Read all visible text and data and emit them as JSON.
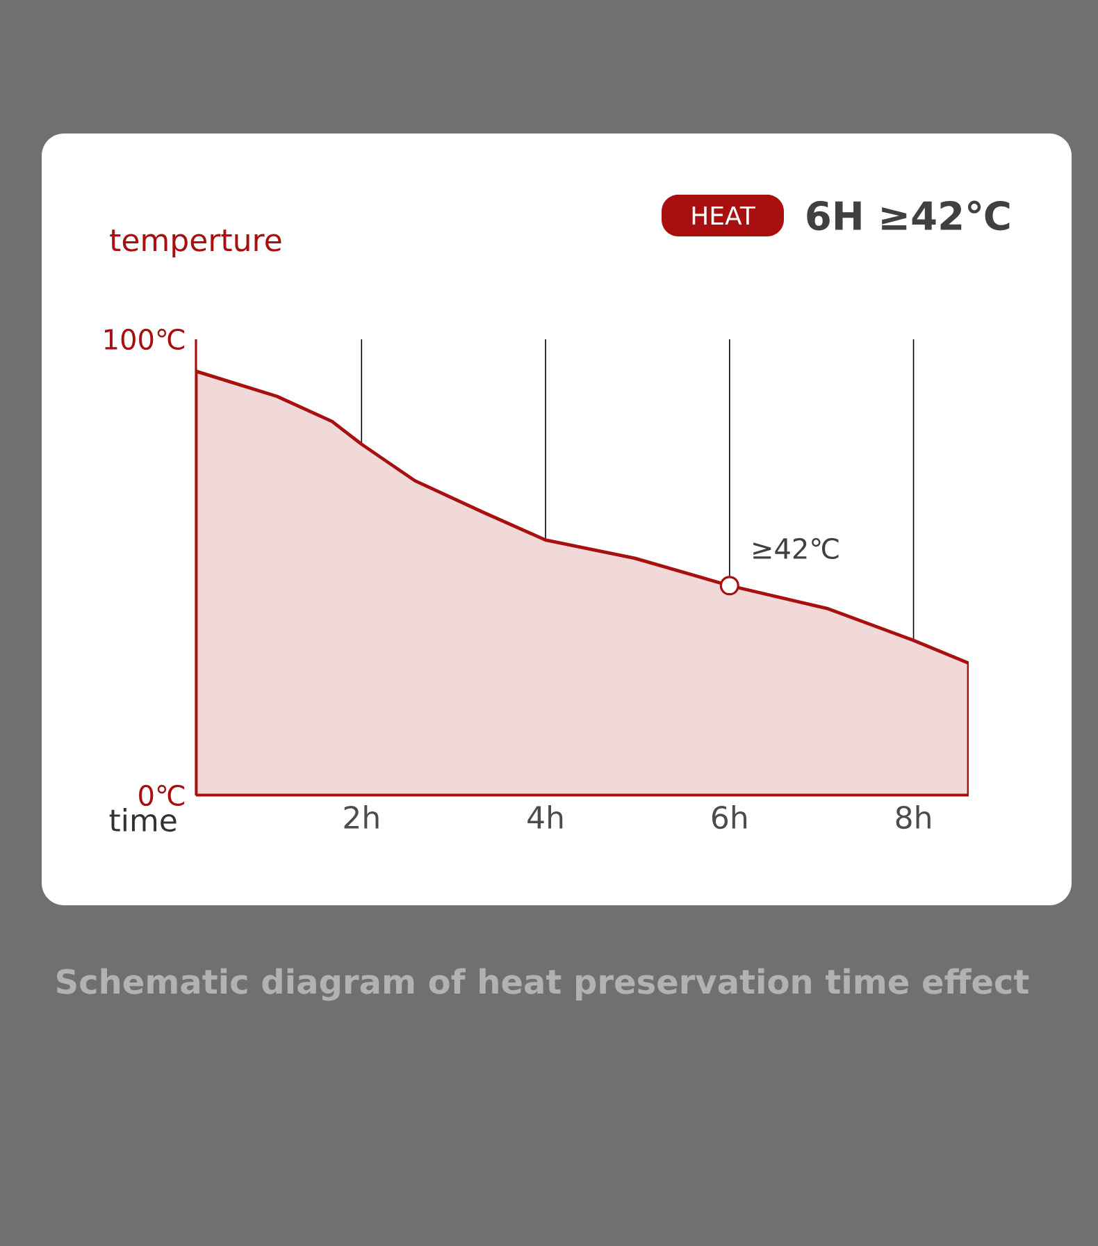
{
  "chart_data": {
    "type": "area",
    "title": "6H ≥42℃",
    "xlabel": "time",
    "ylabel": "temperture",
    "x": [
      0.2,
      1.08,
      1.68,
      2,
      2.58,
      3.33,
      4,
      4.97,
      6,
      7.06,
      8,
      8.6
    ],
    "values": [
      93,
      87.5,
      82,
      77,
      69,
      62,
      56,
      52,
      46,
      41,
      34,
      29
    ],
    "color": "#a80f0f",
    "xlim": [
      0.2,
      8.6
    ],
    "ylim": [
      0,
      100
    ],
    "xticks": [
      {
        "value": 2,
        "label": "2h"
      },
      {
        "value": 4,
        "label": "4h"
      },
      {
        "value": 6,
        "label": "6h"
      },
      {
        "value": 8,
        "label": "8h"
      }
    ],
    "yticks": [
      {
        "value": 0,
        "label": "0℃"
      },
      {
        "value": 100,
        "label": "100℃"
      }
    ],
    "grid": "x",
    "annotations": [
      "HEAT",
      {
        "text": "≥42℃",
        "x": 6,
        "y": 46
      },
      "Schematic diagram of heat preservation time effect"
    ]
  }
}
